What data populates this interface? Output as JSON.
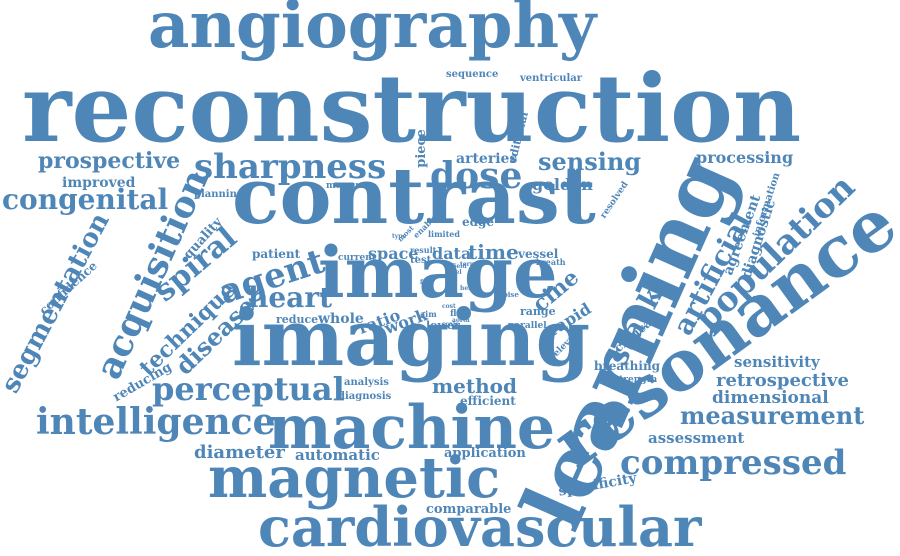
{
  "colors": {
    "word": "#4f86b8",
    "background": "#ffffff"
  },
  "words": [
    "angiography",
    "reconstruction",
    "contrast",
    "image",
    "imaging",
    "learning",
    "machine",
    "resonance",
    "magnetic",
    "cardiovascular",
    "intelligence",
    "perceptual",
    "sharpness",
    "prospective",
    "congenital",
    "acquisition",
    "segmentation",
    "spiral",
    "agent",
    "heart",
    "technique",
    "disease",
    "dose",
    "sensing",
    "processing",
    "population",
    "artificial",
    "measurement",
    "retrospective",
    "compressed",
    "dimensional",
    "sensitivity",
    "assessment",
    "specificity",
    "method",
    "diameter",
    "automatic",
    "application",
    "comparable",
    "stack",
    "time",
    "data",
    "space",
    "golden",
    "arteries",
    "improved",
    "quality",
    "confidence",
    "reducing",
    "planning",
    "patient",
    "ratio",
    "work",
    "reduce",
    "whole",
    "rapid",
    "cine",
    "vessel",
    "sequence",
    "ventricular",
    "piece",
    "editorial",
    "edge",
    "limited",
    "current",
    "result",
    "test",
    "range",
    "lower",
    "flow",
    "aim",
    "scale",
    "parallel",
    "noise",
    "breathing",
    "strength",
    "clinical",
    "relevant",
    "diagnostic",
    "agreement",
    "information",
    "resolved",
    "efficient",
    "analysis",
    "diagnosis",
    "measure",
    "enable",
    "most",
    "type",
    "free",
    "breath",
    "term",
    "level",
    "cost",
    "aorta",
    "field",
    "fast",
    "her"
  ]
}
